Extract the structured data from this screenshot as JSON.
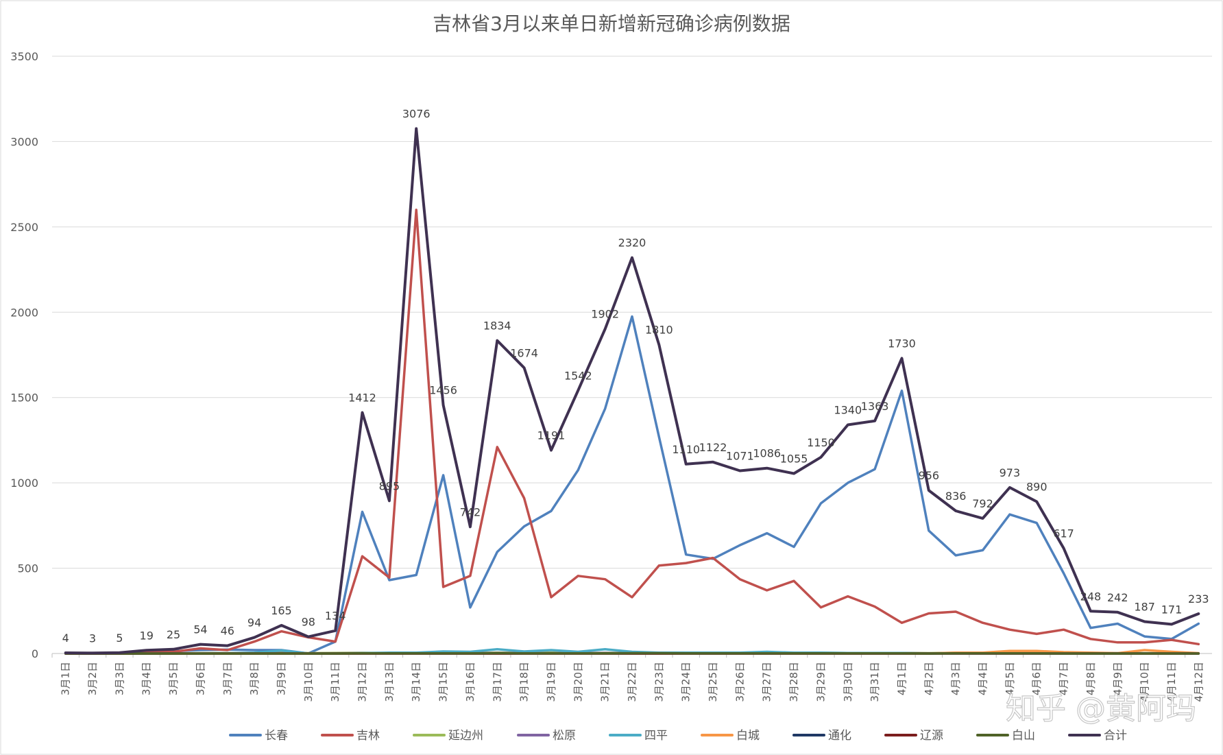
{
  "chart_data": {
    "type": "line",
    "title": "吉林省3月以来单日新增新冠确诊病例数据",
    "xlabel": "",
    "ylabel": "",
    "ylim": [
      0,
      3500
    ],
    "yticks": [
      0,
      500,
      1000,
      1500,
      2000,
      2500,
      3000,
      3500
    ],
    "grid": true,
    "legend_position": "bottom",
    "categories": [
      "3月1日",
      "3月2日",
      "3月3日",
      "3月4日",
      "3月5日",
      "3月6日",
      "3月7日",
      "3月8日",
      "3月9日",
      "3月10日",
      "3月11日",
      "3月12日",
      "3月13日",
      "3月14日",
      "3月15日",
      "3月16日",
      "3月17日",
      "3月18日",
      "3月19日",
      "3月20日",
      "3月21日",
      "3月22日",
      "3月23日",
      "3月24日",
      "3月25日",
      "3月26日",
      "3月27日",
      "3月28日",
      "3月29日",
      "3月30日",
      "3月31日",
      "4月1日",
      "4月2日",
      "4月3日",
      "4月4日",
      "4月5日",
      "4月6日",
      "4月7日",
      "4月8日",
      "4月9日",
      "4月10日",
      "4月11日",
      "4月12日"
    ],
    "series": [
      {
        "name": "长春",
        "color": "#4f81bd",
        "values": [
          2,
          2,
          3,
          10,
          14,
          20,
          23,
          20,
          20,
          1,
          70,
          830,
          430,
          460,
          1045,
          270,
          595,
          745,
          835,
          1075,
          1435,
          1975,
          1270,
          580,
          555,
          635,
          705,
          625,
          880,
          1000,
          1080,
          1540,
          720,
          575,
          605,
          815,
          765,
          470,
          150,
          175,
          100,
          85,
          175
        ]
      },
      {
        "name": "吉林",
        "color": "#c0504d",
        "values": [
          1,
          1,
          2,
          8,
          10,
          30,
          20,
          70,
          130,
          95,
          70,
          570,
          445,
          2600,
          390,
          455,
          1210,
          910,
          330,
          455,
          435,
          330,
          515,
          530,
          560,
          435,
          370,
          425,
          270,
          335,
          275,
          180,
          235,
          245,
          180,
          140,
          115,
          140,
          85,
          65,
          65,
          80,
          55
        ]
      },
      {
        "name": "延边州",
        "color": "#9bbb59",
        "values": [
          0,
          0,
          0,
          0,
          0,
          2,
          2,
          3,
          5,
          2,
          3,
          4,
          3,
          5,
          5,
          3,
          5,
          4,
          5,
          3,
          4,
          3,
          5,
          3,
          4,
          3,
          4,
          3,
          4,
          3,
          3,
          3,
          2,
          4,
          3,
          4,
          3,
          2,
          2,
          1,
          2,
          1,
          1
        ]
      },
      {
        "name": "松原",
        "color": "#8064a2",
        "values": [
          0,
          0,
          0,
          0,
          0,
          1,
          1,
          1,
          2,
          1,
          1,
          2,
          2,
          2,
          3,
          2,
          3,
          2,
          2,
          2,
          3,
          2,
          2,
          2,
          2,
          2,
          3,
          2,
          2,
          2,
          2,
          2,
          1,
          1,
          1,
          1,
          1,
          1,
          1,
          1,
          1,
          1,
          1
        ]
      },
      {
        "name": "四平",
        "color": "#4bacc6",
        "values": [
          1,
          0,
          0,
          1,
          1,
          1,
          2,
          5,
          18,
          0,
          0,
          2,
          5,
          5,
          12,
          10,
          25,
          12,
          20,
          10,
          25,
          10,
          5,
          5,
          5,
          5,
          10,
          5,
          5,
          3,
          3,
          3,
          0,
          3,
          3,
          5,
          5,
          3,
          3,
          2,
          1,
          1,
          1
        ]
      },
      {
        "name": "白城",
        "color": "#f79646",
        "values": [
          0,
          0,
          0,
          0,
          0,
          0,
          0,
          0,
          0,
          0,
          0,
          0,
          0,
          0,
          0,
          0,
          0,
          0,
          0,
          0,
          0,
          0,
          0,
          0,
          0,
          0,
          0,
          0,
          0,
          0,
          0,
          0,
          0,
          5,
          5,
          15,
          15,
          8,
          5,
          2,
          20,
          10,
          2
        ]
      },
      {
        "name": "通化",
        "color": "#1f3864",
        "values": [
          0,
          0,
          0,
          0,
          0,
          0,
          0,
          0,
          0,
          0,
          0,
          0,
          0,
          0,
          0,
          0,
          0,
          0,
          0,
          0,
          0,
          0,
          0,
          0,
          0,
          0,
          0,
          0,
          0,
          0,
          0,
          0,
          0,
          0,
          0,
          0,
          0,
          0,
          0,
          0,
          0,
          0,
          0
        ]
      },
      {
        "name": "辽源",
        "color": "#7b1d1d",
        "values": [
          0,
          0,
          0,
          0,
          0,
          0,
          0,
          0,
          0,
          0,
          0,
          0,
          0,
          0,
          0,
          0,
          0,
          0,
          0,
          0,
          0,
          0,
          0,
          0,
          0,
          0,
          0,
          0,
          0,
          0,
          0,
          0,
          0,
          0,
          0,
          0,
          0,
          0,
          0,
          0,
          0,
          0,
          0
        ]
      },
      {
        "name": "白山",
        "color": "#4f6228",
        "values": [
          0,
          0,
          0,
          0,
          0,
          0,
          0,
          0,
          0,
          0,
          0,
          1,
          1,
          1,
          1,
          1,
          2,
          1,
          1,
          1,
          1,
          2,
          2,
          1,
          1,
          1,
          1,
          1,
          1,
          1,
          1,
          1,
          0,
          1,
          1,
          1,
          1,
          0,
          0,
          0,
          0,
          0,
          0
        ]
      },
      {
        "name": "合计",
        "color": "#3f3151",
        "values": [
          4,
          3,
          5,
          19,
          25,
          54,
          46,
          94,
          165,
          98,
          134,
          1412,
          895,
          3076,
          1456,
          742,
          1834,
          1674,
          1191,
          1542,
          1902,
          2320,
          1810,
          1110,
          1122,
          1071,
          1086,
          1055,
          1150,
          1340,
          1363,
          1730,
          956,
          836,
          792,
          973,
          890,
          617,
          248,
          242,
          187,
          171,
          233
        ],
        "data_labels": true
      }
    ]
  },
  "watermark": "知乎 @黄阿玛"
}
